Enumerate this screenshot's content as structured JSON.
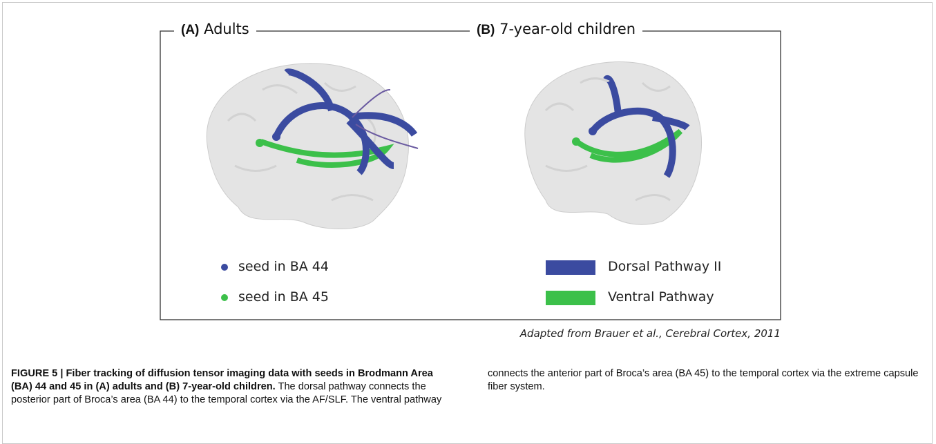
{
  "figure": {
    "panels": [
      {
        "label": "(A)",
        "title": "Adults"
      },
      {
        "label": "(B)",
        "title": "7-year-old children"
      }
    ],
    "legend": {
      "seeds": [
        "seed in BA 44",
        "seed in BA 45"
      ],
      "pathways": [
        "Dorsal Pathway II",
        "Ventral Pathway"
      ]
    },
    "credit": "Adapted from Brauer et al., Cerebral Cortex,  2011"
  },
  "caption": {
    "heading": "FIGURE 5 | Fiber tracking of diffusion tensor imaging data with seeds in Brodmann Area (BA) 44 and 45 in (A) adults and (B) 7-year-old children.",
    "body": "The dorsal pathway connects the posterior part of Broca’s area (BA 44) to the temporal cortex via the AF/SLF. The ventral pathway connects the anterior part of Broca’s area (BA 45) to the temporal cortex via the extreme capsule fiber system."
  }
}
